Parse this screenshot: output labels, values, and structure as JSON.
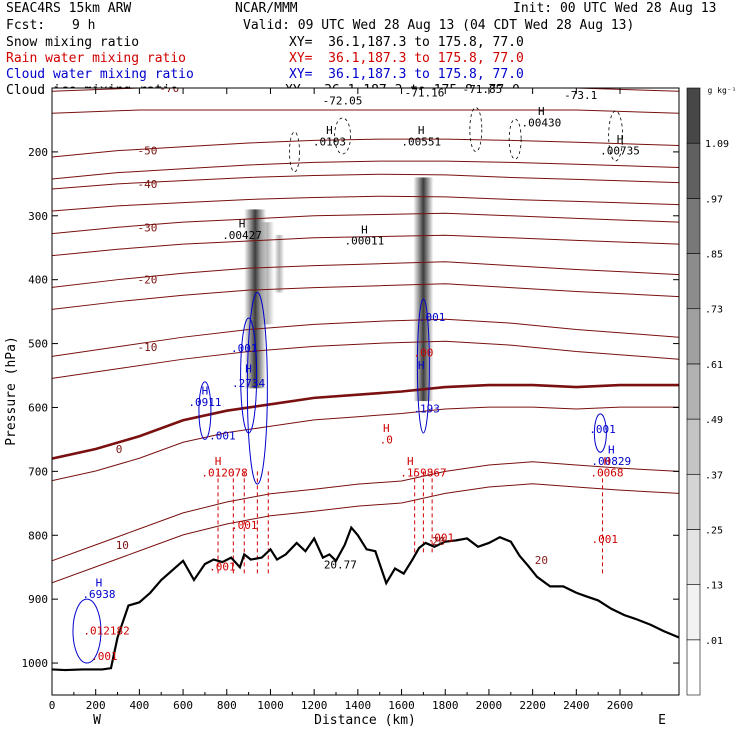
{
  "header": {
    "model": "SEAC4RS 15km ARW",
    "org": "NCAR/MMM",
    "init": "Init: 00 UTC Wed 28 Aug 13",
    "fcst_label": "Fcst:",
    "fcst_value": "9 h",
    "valid": "Valid: 09 UTC Wed 28 Aug 13 (04 CDT Wed 28 Aug 13)",
    "fields": [
      {
        "name": "Snow mixing ratio",
        "xy": "XY=  36.1,187.3 to 175.8, 77.0",
        "color": "#000000"
      },
      {
        "name": "Rain water mixing ratio",
        "xy": "XY=  36.1,187.3 to 175.8, 77.0",
        "color": "#d00000"
      },
      {
        "name": "Cloud water mixing ratio",
        "xy": "XY=  36.1,187.3 to 175.8, 77.0",
        "color": "#0000cc"
      },
      {
        "name": "Cloud ice mixing ratio",
        "xy": "XY=  36.1,187.3 to 175.8, 77.0",
        "color": "#000000"
      }
    ]
  },
  "chart_data": {
    "type": "cross-section",
    "xlabel": "Distance (km)",
    "ylabel": "Pressure (hPa)",
    "xlim": [
      0,
      2870
    ],
    "ylim": [
      1050,
      100
    ],
    "x_ticks": [
      0,
      200,
      400,
      600,
      800,
      1000,
      1200,
      1400,
      1600,
      1800,
      2000,
      2200,
      2400,
      2600
    ],
    "y_ticks": [
      200,
      300,
      400,
      500,
      600,
      700,
      800,
      900,
      1000
    ],
    "y_tick_labels": [
      "200",
      "300",
      "400",
      "500",
      "600",
      "700",
      "800",
      "900",
      "1000"
    ],
    "x_end_labels": {
      "left": "W",
      "right": "E"
    },
    "colorbar": {
      "unit": "g kg⁻¹",
      "levels": [
        ".01",
        ".13",
        ".25",
        ".37",
        ".49",
        ".61",
        ".73",
        ".85",
        ".97",
        "1.09"
      ],
      "colors": [
        "#ffffff",
        "#f2f2f2",
        "#e4e4e4",
        "#d4d4d4",
        "#c4c4c4",
        "#b2b2b2",
        "#a0a0a0",
        "#8c8c8c",
        "#787878",
        "#606060",
        "#474747"
      ]
    },
    "terrain": [
      [
        0,
        1010
      ],
      [
        60,
        1011
      ],
      [
        140,
        1010
      ],
      [
        230,
        1010
      ],
      [
        270,
        1008
      ],
      [
        300,
        960
      ],
      [
        350,
        910
      ],
      [
        400,
        905
      ],
      [
        450,
        890
      ],
      [
        500,
        870
      ],
      [
        550,
        855
      ],
      [
        600,
        840
      ],
      [
        650,
        870
      ],
      [
        700,
        845
      ],
      [
        740,
        838
      ],
      [
        780,
        842
      ],
      [
        820,
        835
      ],
      [
        860,
        850
      ],
      [
        880,
        830
      ],
      [
        910,
        838
      ],
      [
        960,
        835
      ],
      [
        1000,
        822
      ],
      [
        1030,
        838
      ],
      [
        1070,
        830
      ],
      [
        1120,
        812
      ],
      [
        1160,
        825
      ],
      [
        1200,
        805
      ],
      [
        1240,
        835
      ],
      [
        1270,
        830
      ],
      [
        1300,
        840
      ],
      [
        1340,
        815
      ],
      [
        1370,
        788
      ],
      [
        1400,
        800
      ],
      [
        1440,
        822
      ],
      [
        1480,
        825
      ],
      [
        1530,
        875
      ],
      [
        1570,
        852
      ],
      [
        1610,
        860
      ],
      [
        1650,
        838
      ],
      [
        1680,
        820
      ],
      [
        1710,
        812
      ],
      [
        1750,
        818
      ],
      [
        1800,
        810
      ],
      [
        1850,
        808
      ],
      [
        1900,
        805
      ],
      [
        1950,
        818
      ],
      [
        2000,
        812
      ],
      [
        2050,
        803
      ],
      [
        2100,
        810
      ],
      [
        2140,
        832
      ],
      [
        2180,
        848
      ],
      [
        2220,
        865
      ],
      [
        2280,
        880
      ],
      [
        2340,
        880
      ],
      [
        2400,
        890
      ],
      [
        2440,
        895
      ],
      [
        2500,
        902
      ],
      [
        2560,
        915
      ],
      [
        2620,
        925
      ],
      [
        2680,
        932
      ],
      [
        2740,
        940
      ],
      [
        2800,
        950
      ],
      [
        2870,
        960
      ]
    ],
    "isotherms": [
      {
        "label": "-70",
        "points": [
          [
            0,
            105
          ],
          [
            400,
            100
          ],
          [
            800,
            100
          ],
          [
            1200,
            100
          ],
          [
            1600,
            100
          ],
          [
            2000,
            100
          ],
          [
            2400,
            100
          ],
          [
            2870,
            105
          ]
        ]
      },
      {
        "label": "-50",
        "points": [
          [
            0,
            208
          ],
          [
            300,
            198
          ],
          [
            600,
            192
          ],
          [
            900,
            186
          ],
          [
            1200,
            182
          ],
          [
            1500,
            180
          ],
          [
            1800,
            180
          ],
          [
            2100,
            182
          ],
          [
            2400,
            185
          ],
          [
            2870,
            190
          ]
        ]
      },
      {
        "label": "-40",
        "points": [
          [
            0,
            258
          ],
          [
            300,
            250
          ],
          [
            600,
            245
          ],
          [
            900,
            240
          ],
          [
            1200,
            237
          ],
          [
            1500,
            235
          ],
          [
            1800,
            236
          ],
          [
            2100,
            240
          ],
          [
            2400,
            243
          ],
          [
            2870,
            248
          ]
        ]
      },
      {
        "label": "-30",
        "points": [
          [
            0,
            328
          ],
          [
            300,
            318
          ],
          [
            600,
            310
          ],
          [
            900,
            305
          ],
          [
            1200,
            300
          ],
          [
            1500,
            298
          ],
          [
            1800,
            296
          ],
          [
            2100,
            300
          ],
          [
            2400,
            304
          ],
          [
            2870,
            310
          ]
        ]
      },
      {
        "label": "-20",
        "points": [
          [
            0,
            412
          ],
          [
            300,
            400
          ],
          [
            600,
            390
          ],
          [
            900,
            382
          ],
          [
            1200,
            378
          ],
          [
            1500,
            375
          ],
          [
            1800,
            372
          ],
          [
            2100,
            378
          ],
          [
            2400,
            384
          ],
          [
            2870,
            392
          ]
        ]
      },
      {
        "label": "-10",
        "points": [
          [
            0,
            520
          ],
          [
            300,
            505
          ],
          [
            600,
            490
          ],
          [
            900,
            478
          ],
          [
            1200,
            470
          ],
          [
            1500,
            465
          ],
          [
            1800,
            462
          ],
          [
            2100,
            468
          ],
          [
            2400,
            478
          ],
          [
            2870,
            490
          ]
        ]
      },
      {
        "label": "0",
        "points": [
          [
            0,
            680
          ],
          [
            200,
            665
          ],
          [
            400,
            645
          ],
          [
            600,
            620
          ],
          [
            800,
            605
          ],
          [
            1000,
            595
          ],
          [
            1200,
            585
          ],
          [
            1400,
            580
          ],
          [
            1600,
            575
          ],
          [
            1800,
            568
          ],
          [
            2000,
            565
          ],
          [
            2200,
            565
          ],
          [
            2400,
            568
          ],
          [
            2600,
            565
          ],
          [
            2870,
            565
          ]
        ]
      },
      {
        "label": "10",
        "points": [
          [
            0,
            840
          ],
          [
            200,
            815
          ],
          [
            400,
            790
          ],
          [
            600,
            765
          ],
          [
            800,
            748
          ],
          [
            1000,
            735
          ],
          [
            1200,
            728
          ],
          [
            1400,
            720
          ],
          [
            1600,
            715
          ],
          [
            1800,
            700
          ],
          [
            2000,
            690
          ],
          [
            2200,
            685
          ],
          [
            2400,
            690
          ],
          [
            2600,
            695
          ],
          [
            2870,
            700
          ]
        ]
      }
    ],
    "annotations": [
      {
        "x": 1330,
        "p": 126,
        "text": "-72.05",
        "color": "#000000"
      },
      {
        "x": 2420,
        "p": 117,
        "text": "-73.1",
        "color": "#000000"
      },
      {
        "x": 1705,
        "p": 113,
        "text": "-71.16",
        "color": "#000000"
      },
      {
        "x": 1970,
        "p": 108,
        "text": "-71.85",
        "color": "#000000"
      },
      {
        "x": 1270,
        "p": 172,
        "text": "H",
        "color": "#000000"
      },
      {
        "x": 1270,
        "p": 190,
        "text": ".0103",
        "color": "#000000"
      },
      {
        "x": 1690,
        "p": 172,
        "text": "H",
        "color": "#000000"
      },
      {
        "x": 1690,
        "p": 190,
        "text": ".00551",
        "color": "#000000"
      },
      {
        "x": 2240,
        "p": 142,
        "text": "H",
        "color": "#000000"
      },
      {
        "x": 2240,
        "p": 160,
        "text": ".00430",
        "color": "#000000"
      },
      {
        "x": 2600,
        "p": 186,
        "text": "H",
        "color": "#000000"
      },
      {
        "x": 2600,
        "p": 204,
        "text": ".00735",
        "color": "#000000"
      },
      {
        "x": 870,
        "p": 318,
        "text": "H",
        "color": "#000000"
      },
      {
        "x": 870,
        "p": 336,
        "text": ".00427",
        "color": "#000000"
      },
      {
        "x": 1430,
        "p": 328,
        "text": "H",
        "color": "#000000"
      },
      {
        "x": 1430,
        "p": 345,
        "text": ".00011",
        "color": "#000000"
      },
      {
        "x": 880,
        "p": 513,
        "text": ".001",
        "color": "#0000cc"
      },
      {
        "x": 900,
        "p": 545,
        "text": "H",
        "color": "#0000cc"
      },
      {
        "x": 900,
        "p": 568,
        "text": ".2734",
        "color": "#0000cc"
      },
      {
        "x": 700,
        "p": 580,
        "text": "H",
        "color": "#0000cc"
      },
      {
        "x": 700,
        "p": 598,
        "text": ".0911",
        "color": "#0000cc"
      },
      {
        "x": 780,
        "p": 650,
        "text": ".001",
        "color": "#0000cc"
      },
      {
        "x": 1740,
        "p": 465,
        "text": ".001",
        "color": "#0000cc"
      },
      {
        "x": 1690,
        "p": 540,
        "text": "H",
        "color": "#0000cc"
      },
      {
        "x": 1715,
        "p": 608,
        "text": ".193",
        "color": "#0000cc"
      },
      {
        "x": 2520,
        "p": 640,
        "text": ".001",
        "color": "#0000cc"
      },
      {
        "x": 2560,
        "p": 672,
        "text": "H",
        "color": "#0000cc"
      },
      {
        "x": 2560,
        "p": 690,
        "text": ".00829",
        "color": "#0000cc"
      },
      {
        "x": 215,
        "p": 880,
        "text": "H",
        "color": "#0000cc"
      },
      {
        "x": 215,
        "p": 898,
        "text": ".6938",
        "color": "#0000cc"
      },
      {
        "x": 1700,
        "p": 520,
        "text": ".00",
        "color": "#d00000"
      },
      {
        "x": 1530,
        "p": 638,
        "text": "H",
        "color": "#d00000"
      },
      {
        "x": 1530,
        "p": 656,
        "text": ".0",
        "color": "#d00000"
      },
      {
        "x": 760,
        "p": 690,
        "text": "H",
        "color": "#d00000"
      },
      {
        "x": 790,
        "p": 708,
        "text": ".012078",
        "color": "#d00000"
      },
      {
        "x": 1640,
        "p": 690,
        "text": "H",
        "color": "#d00000"
      },
      {
        "x": 1700,
        "p": 708,
        "text": ".159867",
        "color": "#d00000"
      },
      {
        "x": 2540,
        "p": 690,
        "text": "H",
        "color": "#d00000"
      },
      {
        "x": 2540,
        "p": 708,
        "text": ".0068",
        "color": "#d00000"
      },
      {
        "x": 880,
        "p": 790,
        "text": ".001",
        "color": "#d00000"
      },
      {
        "x": 780,
        "p": 855,
        "text": ".001",
        "color": "#d00000"
      },
      {
        "x": 1780,
        "p": 810,
        "text": ".001",
        "color": "#d00000"
      },
      {
        "x": 2530,
        "p": 812,
        "text": ".001",
        "color": "#d00000"
      },
      {
        "x": 250,
        "p": 955,
        "text": ".012182",
        "color": "#d00000"
      },
      {
        "x": 240,
        "p": 995,
        "text": ".001",
        "color": "#d00000"
      },
      {
        "x": 1320,
        "p": 852,
        "text": "20.77",
        "color": "#000000"
      },
      {
        "x": 1770,
        "p": 815,
        "text": "20",
        "color": "#8b1a1a"
      },
      {
        "x": 2240,
        "p": 845,
        "text": "20",
        "color": "#8b1a1a"
      }
    ]
  }
}
